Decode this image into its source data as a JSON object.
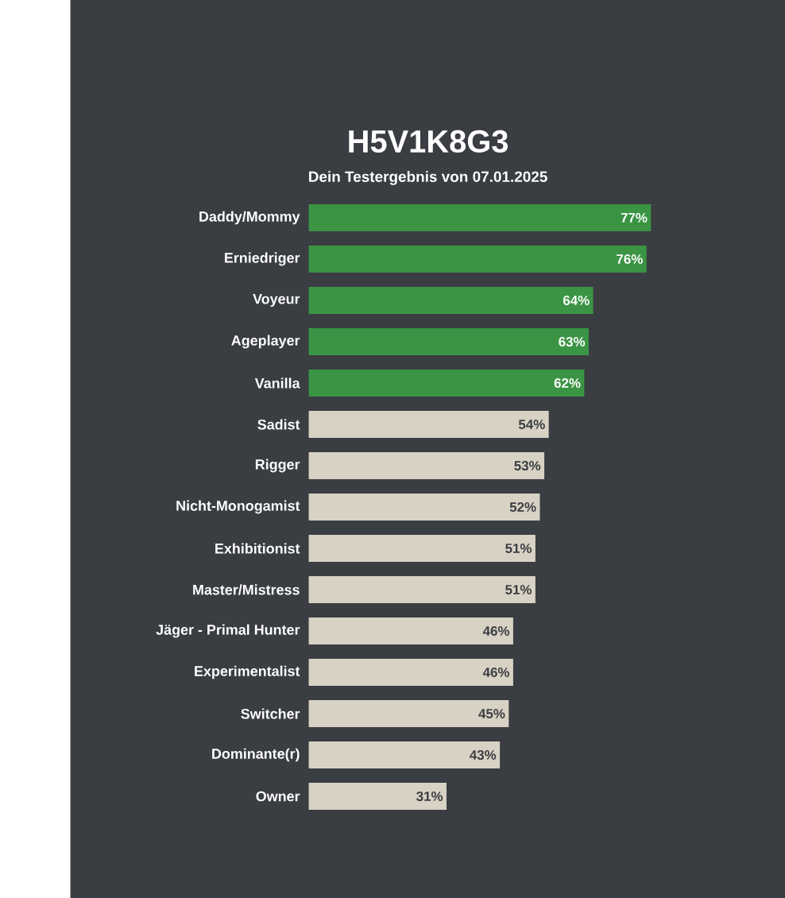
{
  "chart_data": {
    "type": "bar",
    "orientation": "horizontal",
    "title": "H5V1K8G3",
    "subtitle": "Dein Testergebnis von 07.01.2025",
    "categories": [
      "Daddy/Mommy",
      "Erniedriger",
      "Voyeur",
      "Ageplayer",
      "Vanilla",
      "Sadist",
      "Rigger",
      "Nicht-Monogamist",
      "Exhibitionist",
      "Master/Mistress",
      "Jäger - Primal Hunter",
      "Experimentalist",
      "Switcher",
      "Dominante(r)",
      "Owner"
    ],
    "values": [
      77,
      76,
      64,
      63,
      62,
      54,
      53,
      52,
      51,
      51,
      46,
      46,
      45,
      43,
      31
    ],
    "value_labels": [
      "77%",
      "76%",
      "64%",
      "63%",
      "62%",
      "54%",
      "53%",
      "52%",
      "51%",
      "51%",
      "46%",
      "46%",
      "45%",
      "43%",
      "31%"
    ],
    "colors": [
      "#3b9444",
      "#3b9444",
      "#3b9444",
      "#3b9444",
      "#3b9444",
      "#d8d2c4",
      "#d8d2c4",
      "#d8d2c4",
      "#d8d2c4",
      "#d8d2c4",
      "#d8d2c4",
      "#d8d2c4",
      "#d8d2c4",
      "#d8d2c4",
      "#d8d2c4"
    ],
    "tick_labels": "y",
    "grid": false
  }
}
